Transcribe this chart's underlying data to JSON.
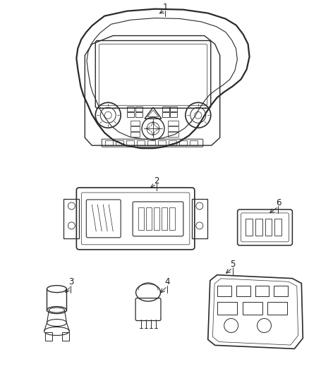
{
  "background_color": "#ffffff",
  "fig_width": 4.38,
  "fig_height": 5.33,
  "dpi": 100,
  "line_color": "#2a2a2a",
  "text_color": "#1a1a1a",
  "label_fontsize": 8.5
}
